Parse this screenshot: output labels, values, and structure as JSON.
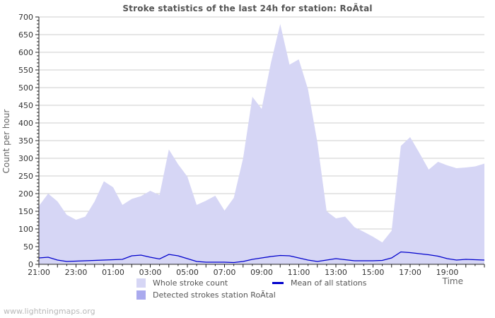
{
  "watermark": "www.lightningmaps.org",
  "colors": {
    "area_light": "#d6d6f5",
    "area_detected": "#aaaaee",
    "mean_line": "#0000cc",
    "grid": "#cccccc",
    "axis": "#222222",
    "tick_text": "#333333",
    "label_text": "#666666",
    "title_text": "#555555",
    "watermark_text": "#b8b8b8"
  },
  "chart_data": {
    "type": "area",
    "title": "Stroke statistics of the last 24h for station: RoÃ͸tal",
    "xlabel": "Time",
    "ylabel": "Count per hour",
    "ylim": [
      0,
      700
    ],
    "ytick_step": 50,
    "ytick_minor_step": 10,
    "x_start": "21:00",
    "x_interval_minutes": 30,
    "hours_span": 24,
    "grid": "horizontal-only",
    "legend_position": "bottom",
    "xtick_labels": [
      "21:00",
      "23:00",
      "01:00",
      "03:00",
      "05:00",
      "07:00",
      "09:00",
      "11:00",
      "13:00",
      "15:00",
      "17:00",
      "19:00"
    ],
    "series": [
      {
        "name": "Whole stroke count",
        "type": "area",
        "color": "#d6d6f5",
        "values": [
          165,
          200,
          178,
          140,
          126,
          135,
          178,
          235,
          218,
          168,
          185,
          193,
          208,
          196,
          325,
          283,
          248,
          168,
          180,
          194,
          152,
          188,
          300,
          474,
          440,
          570,
          680,
          565,
          580,
          495,
          345,
          150,
          130,
          135,
          105,
          92,
          78,
          62,
          95,
          335,
          360,
          315,
          268,
          290,
          280,
          272,
          274,
          277,
          285
        ]
      },
      {
        "name": "Detected strokes station RoÃ͸tal",
        "type": "area",
        "color": "#aaaaee",
        "values": [
          0,
          0,
          0,
          0,
          0,
          0,
          0,
          0,
          0,
          0,
          0,
          0,
          0,
          0,
          0,
          0,
          0,
          0,
          0,
          0,
          0,
          0,
          0,
          0,
          0,
          0,
          0,
          0,
          0,
          0,
          0,
          0,
          0,
          0,
          0,
          0,
          0,
          0,
          0,
          0,
          0,
          0,
          0,
          0,
          0,
          0,
          0,
          0,
          0
        ]
      },
      {
        "name": "Mean of all stations",
        "type": "line",
        "color": "#0000cc",
        "values": [
          18,
          20,
          12,
          8,
          9,
          10,
          11,
          12,
          13,
          14,
          24,
          26,
          20,
          15,
          28,
          24,
          16,
          8,
          6,
          6,
          6,
          5,
          8,
          14,
          18,
          22,
          25,
          24,
          18,
          12,
          8,
          12,
          16,
          13,
          10,
          10,
          10,
          11,
          18,
          35,
          33,
          30,
          27,
          23,
          16,
          12,
          14,
          13,
          12
        ]
      }
    ]
  }
}
